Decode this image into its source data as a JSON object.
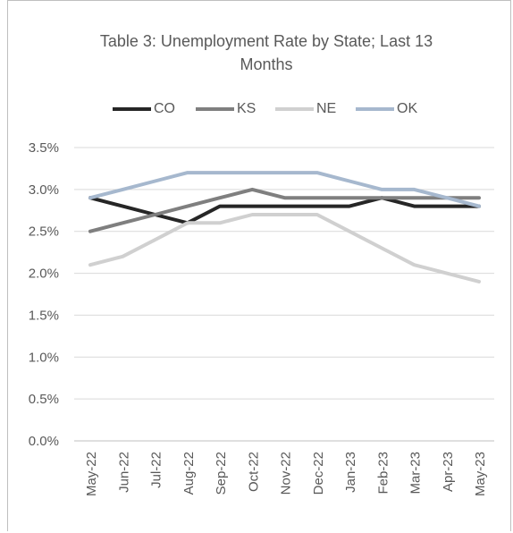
{
  "chart_data": {
    "type": "line",
    "title_lines": [
      "Table 3: Unemployment Rate by State; Last 13",
      "Months"
    ],
    "xlabel": "",
    "ylabel": "",
    "categories": [
      "May-22",
      "Jun-22",
      "Jul-22",
      "Aug-22",
      "Sep-22",
      "Oct-22",
      "Nov-22",
      "Dec-22",
      "Jan-23",
      "Feb-23",
      "Mar-23",
      "Apr-23",
      "May-23"
    ],
    "y_ticks": [
      "0.0%",
      "0.5%",
      "1.0%",
      "1.5%",
      "2.0%",
      "2.5%",
      "3.0%",
      "3.5%"
    ],
    "ylim": [
      0,
      3.5
    ],
    "grid": true,
    "legend_position": "top",
    "series": [
      {
        "name": "CO",
        "color": "#262626",
        "values": [
          2.9,
          2.8,
          2.7,
          2.6,
          2.8,
          2.8,
          2.8,
          2.8,
          2.8,
          2.9,
          2.8,
          2.8,
          2.8
        ]
      },
      {
        "name": "KS",
        "color": "#7f7f7f",
        "values": [
          2.5,
          2.6,
          2.7,
          2.8,
          2.9,
          3.0,
          2.9,
          2.9,
          2.9,
          2.9,
          2.9,
          2.9,
          2.9
        ]
      },
      {
        "name": "NE",
        "color": "#d0d0d0",
        "values": [
          2.1,
          2.2,
          2.4,
          2.6,
          2.6,
          2.7,
          2.7,
          2.7,
          2.5,
          2.3,
          2.1,
          2.0,
          1.9
        ]
      },
      {
        "name": "OK",
        "color": "#a6b8ce",
        "values": [
          2.9,
          3.0,
          3.1,
          3.2,
          3.2,
          3.2,
          3.2,
          3.2,
          3.1,
          3.0,
          3.0,
          2.9,
          2.8
        ]
      }
    ]
  }
}
